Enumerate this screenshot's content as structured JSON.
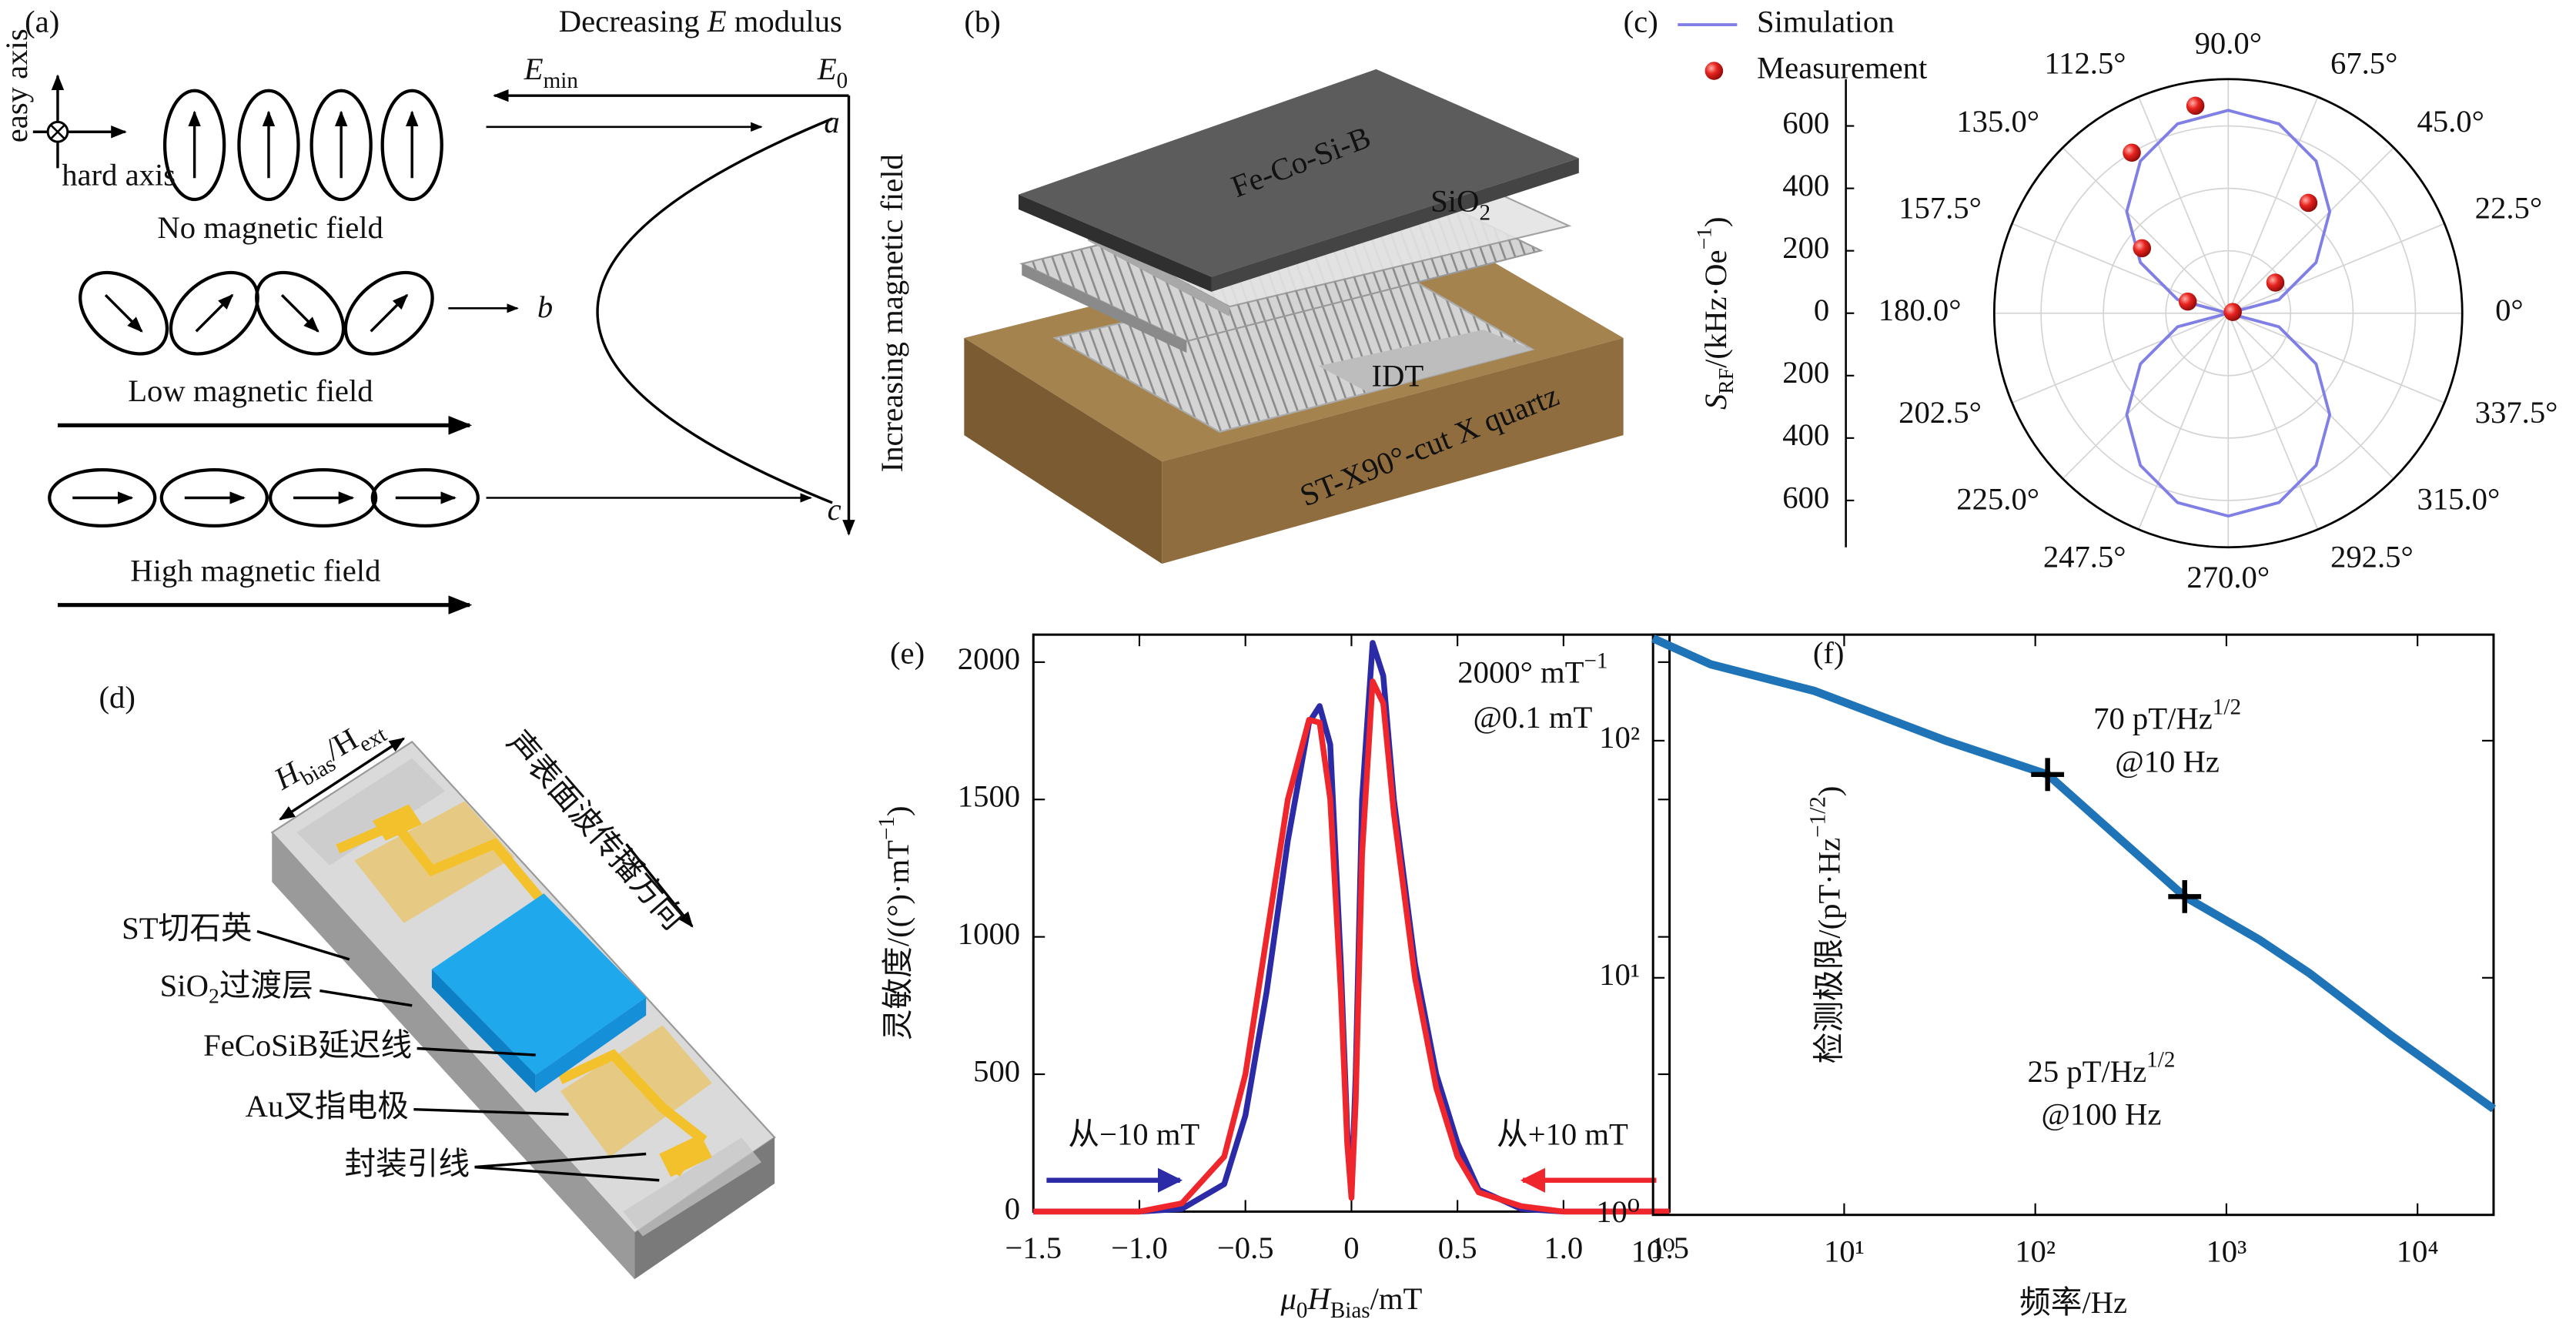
{
  "panel_labels": [
    "(a)",
    "(b)",
    "(c)",
    "(d)",
    "(e)",
    "(f)"
  ],
  "panel_a": {
    "easy_axis": "easy axis",
    "hard_axis": "hard axis",
    "states": [
      "No magnetic field",
      "Low magnetic field",
      "High magnetic field"
    ],
    "top_label": [
      "Decreasing ",
      {
        "it": "E"
      },
      " modulus"
    ],
    "e_min": [
      {
        "it": "E"
      },
      {
        "sub": "min"
      }
    ],
    "e_0": [
      {
        "it": "E"
      },
      {
        "sub": "0"
      }
    ],
    "points": [
      "a",
      "b",
      "c"
    ],
    "side_label": "Increasing magnetic field"
  },
  "panel_b": {
    "layers": [
      "Fe-Co-Si-B",
      [
        "SiO",
        {
          "sub": "2"
        }
      ],
      "IDT",
      "ST-X90°-cut X quartz"
    ]
  },
  "panel_d": {
    "field": [
      {
        "it": "H"
      },
      {
        "sub": "bias"
      },
      "/H",
      {
        "sub": "ext"
      }
    ],
    "direction": "声表面波传播方向",
    "parts": [
      "ST切石英",
      [
        "SiO",
        {
          "sub": "2"
        },
        "过渡层"
      ],
      "FeCoSiB延迟线",
      "Au叉指电极",
      "封装引线"
    ]
  },
  "chart_data": [
    {
      "type": "polar",
      "ylabel": [
        {
          "it": "S"
        },
        {
          "sub": "RF"
        },
        "/(kHz·Oe",
        {
          "sup": "−1"
        },
        ")"
      ],
      "ylim": [
        0,
        750
      ],
      "yticks": [
        0,
        200,
        400,
        600
      ],
      "grid": true,
      "theta_ticks": [
        {
          "value": 0,
          "label": "0°"
        },
        {
          "value": 22.5,
          "label": "22.5°"
        },
        {
          "value": 45,
          "label": "45.0°"
        },
        {
          "value": 67.5,
          "label": "67.5°"
        },
        {
          "value": 90,
          "label": "90.0°"
        },
        {
          "value": 112.5,
          "label": "112.5°"
        },
        {
          "value": 135,
          "label": "135.0°"
        },
        {
          "value": 157.5,
          "label": "157.5°"
        },
        {
          "value": 180,
          "label": "180.0°"
        },
        {
          "value": 202.5,
          "label": "202.5°"
        },
        {
          "value": 225,
          "label": "225.0°"
        },
        {
          "value": 247.5,
          "label": "247.5°"
        },
        {
          "value": 270,
          "label": "270.0°"
        },
        {
          "value": 292.5,
          "label": "292.5°"
        },
        {
          "value": 315,
          "label": "315.0°"
        },
        {
          "value": 337.5,
          "label": "337.5°"
        }
      ],
      "series": [
        {
          "name": "Simulation",
          "kind": "line",
          "color": "#7f7fe6",
          "theta": [
            0,
            15,
            30,
            45,
            60,
            75,
            90,
            105,
            120,
            135,
            150,
            165,
            180,
            195,
            210,
            225,
            240,
            255,
            270,
            285,
            300,
            315,
            330,
            345,
            360
          ],
          "values": [
            0,
            168,
            325,
            460,
            563,
            628,
            650,
            628,
            563,
            460,
            325,
            168,
            0,
            168,
            325,
            460,
            563,
            628,
            650,
            628,
            563,
            460,
            325,
            168,
            0
          ]
        },
        {
          "name": "Measurement",
          "kind": "scatter",
          "color": "#e8231f",
          "theta": [
            15,
            33,
            54,
            99,
            121,
            143,
            164
          ],
          "values": [
            15,
            180,
            437,
            673,
            600,
            346,
            135
          ]
        }
      ]
    },
    {
      "type": "line",
      "xlabel": [
        {
          "it": "μ"
        },
        {
          "sub": "0"
        },
        {
          "it": "H"
        },
        {
          "sub": "Bias"
        },
        "/mT"
      ],
      "ylabel": [
        "灵敏度/((°)·mT",
        {
          "sup": "−1"
        },
        ")"
      ],
      "xlim": [
        -1.5,
        1.5
      ],
      "ylim": [
        0,
        2100
      ],
      "xticks": [
        {
          "value": -1.5,
          "label": "−1.5"
        },
        {
          "value": -1,
          "label": "−1.0"
        },
        {
          "value": -0.5,
          "label": "−0.5"
        },
        0,
        0.5,
        {
          "value": 1,
          "label": "1.0"
        },
        1.5
      ],
      "yticks": [
        0,
        500,
        1000,
        1500,
        2000
      ],
      "x": [
        -1.5,
        -1.0,
        -0.8,
        -0.6,
        -0.5,
        -0.4,
        -0.3,
        -0.2,
        -0.15,
        -0.1,
        -0.05,
        -0.02,
        0,
        0.02,
        0.05,
        0.1,
        0.15,
        0.2,
        0.3,
        0.4,
        0.5,
        0.6,
        0.8,
        1.0,
        1.5
      ],
      "series": [
        {
          "color": "#2b2ba8",
          "values": [
            0,
            0,
            10,
            100,
            350,
            800,
            1350,
            1780,
            1840,
            1700,
            900,
            300,
            60,
            500,
            1500,
            2070,
            1950,
            1500,
            900,
            500,
            250,
            80,
            10,
            0,
            0
          ]
        },
        {
          "color": "#f0262d",
          "values": [
            0,
            0,
            30,
            200,
            500,
            1000,
            1500,
            1790,
            1780,
            1500,
            800,
            250,
            50,
            400,
            1300,
            1930,
            1850,
            1450,
            850,
            450,
            200,
            70,
            20,
            0,
            0
          ]
        }
      ],
      "annotations": [
        [
          "2000° mT",
          {
            "sup": "−1"
          }
        ],
        "@0.1 mT",
        "从−10 mT",
        "从+10 mT"
      ]
    },
    {
      "type": "line",
      "log_x": true,
      "log_y": true,
      "xlabel": "频率/Hz",
      "ylabel": [
        "检测极限/(pT·Hz",
        {
          "sup": "−1/2"
        },
        ")"
      ],
      "xlim": [
        1,
        25000
      ],
      "ylim": [
        1,
        280
      ],
      "xticks": [
        {
          "value": 1,
          "label": "10⁰"
        },
        {
          "value": 10,
          "label": "10¹"
        },
        {
          "value": 100,
          "label": "10²"
        },
        {
          "value": 1000,
          "label": "10³"
        },
        {
          "value": 10000,
          "label": "10⁴"
        }
      ],
      "yticks": [
        {
          "value": 1,
          "label": "10⁰"
        },
        {
          "value": 10,
          "label": "10¹"
        },
        {
          "value": 100,
          "label": "10²"
        }
      ],
      "x": [
        1,
        2,
        7,
        34,
        116,
        605,
        1480,
        2700,
        7300,
        25000
      ],
      "values": [
        270,
        210,
        162,
        100,
        72,
        22,
        14.5,
        10.5,
        5.7,
        2.8
      ],
      "color": "#1f74b8",
      "markers": {
        "x": [
          116,
          605
        ],
        "y": [
          72,
          22
        ]
      },
      "annotations": [
        [
          "70 pT/Hz",
          {
            "sup": "1/2"
          }
        ],
        "@10 Hz",
        [
          "25 pT/Hz",
          {
            "sup": "1/2"
          }
        ],
        "@100 Hz"
      ]
    }
  ]
}
